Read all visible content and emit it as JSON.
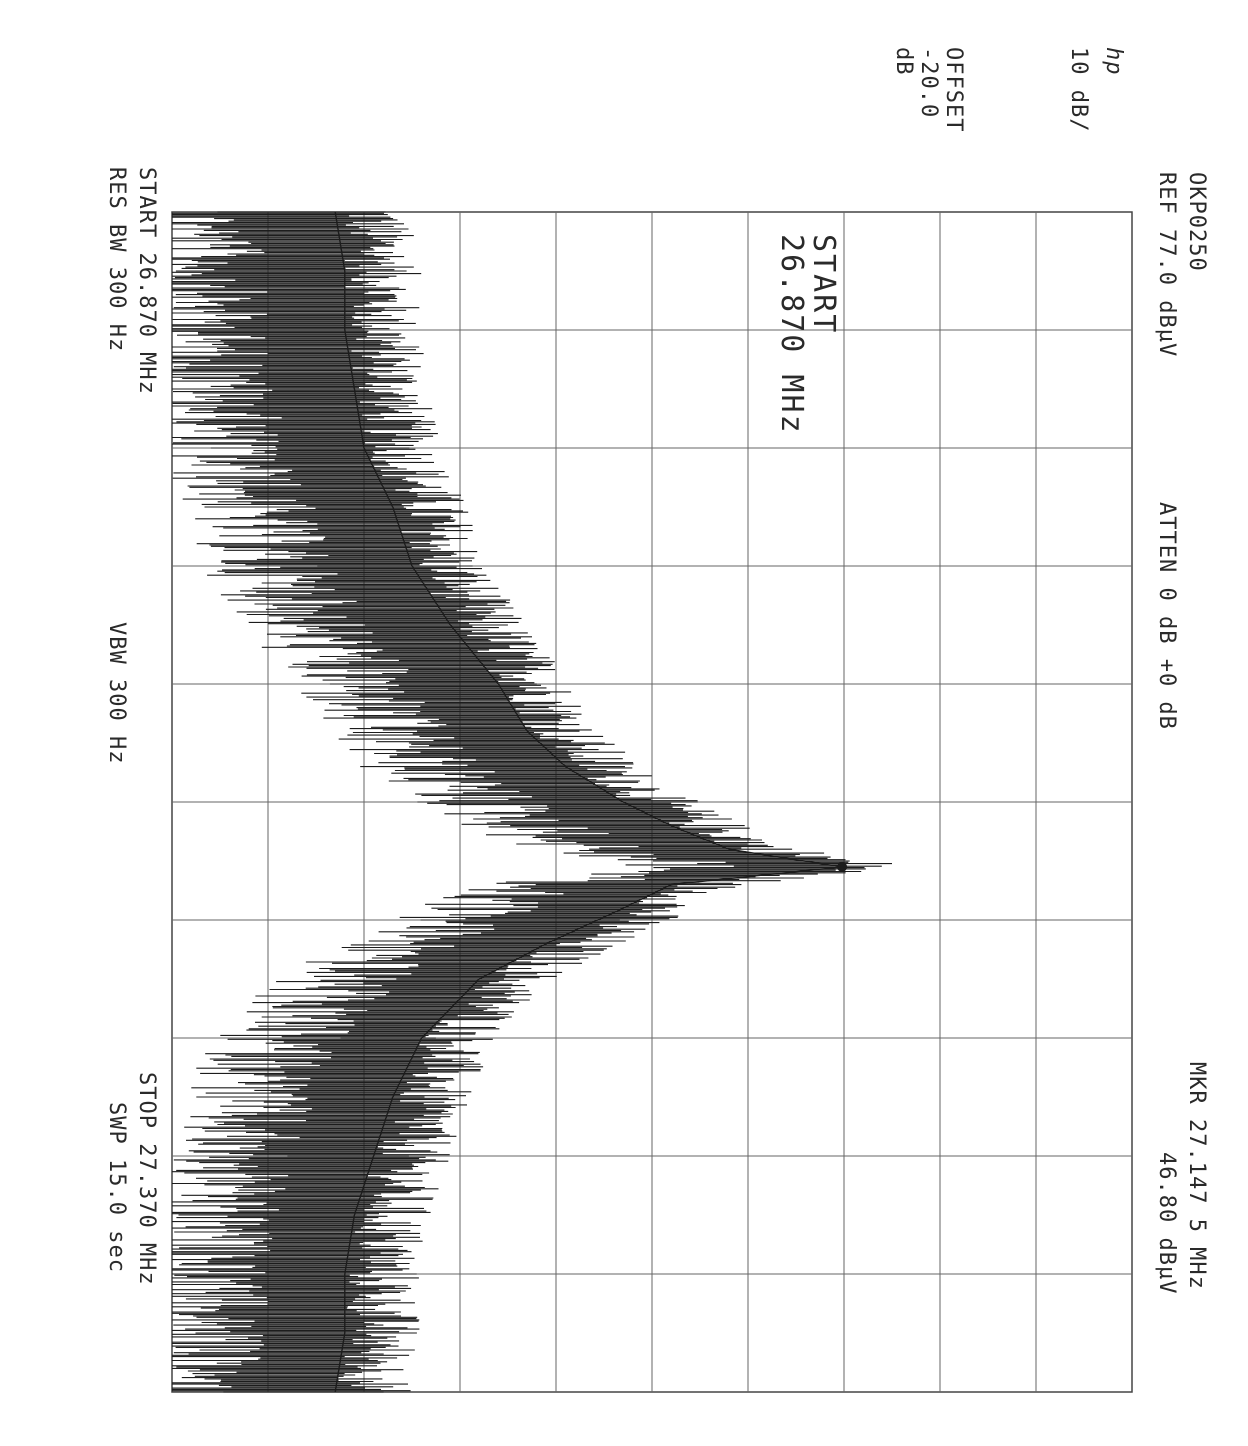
{
  "header": {
    "id": "OKP0250",
    "ref": "REF  77.0 dBµV",
    "atten": "ATTEN 0 dB  +0 dB",
    "scale": "10 dB/",
    "offset_label": "OFFSET",
    "offset_value": "-20.0",
    "offset_unit": "dB",
    "marker_freq": "MKR 27.147 5 MHz",
    "marker_level": "46.80 dBµV",
    "logo": "hp"
  },
  "annotation": {
    "start_label": "START",
    "start_value": "26.870 MHz"
  },
  "footer": {
    "start": "START 26.870 MHz",
    "stop": "STOP 27.370 MHz",
    "res_bw": "RES BW 300  Hz",
    "vbw": "VBW 300  Hz",
    "sweep": "SWP 15.0  sec"
  },
  "chart_data": {
    "type": "line",
    "title": "",
    "xlabel": "",
    "ylabel": "",
    "x_unit": "MHz",
    "y_unit": "dBµV",
    "xlim": [
      26.87,
      27.37
    ],
    "ylim": [
      -23,
      77
    ],
    "reference_level": 77.0,
    "scale_db_per_div": 10,
    "divisions": {
      "x": 10,
      "y": 10
    },
    "grid": true,
    "marker": {
      "x": 27.1475,
      "y": 46.8
    },
    "series": [
      {
        "x": [
          26.87,
          26.895,
          26.92,
          26.945,
          26.97,
          26.995,
          27.02,
          27.045,
          27.07,
          27.09,
          27.105,
          27.12,
          27.13,
          27.14,
          27.1475,
          27.155,
          27.165,
          27.18,
          27.195,
          27.22,
          27.245,
          27.27,
          27.295,
          27.32,
          27.345,
          27.37
        ],
        "values": [
          -6,
          -5,
          -5,
          -4,
          -3,
          0,
          2,
          6,
          11,
          14,
          18,
          24,
          29,
          35,
          46.8,
          29,
          24,
          16,
          9,
          3,
          0,
          -2,
          -4,
          -5,
          -5,
          -6
        ]
      }
    ]
  }
}
